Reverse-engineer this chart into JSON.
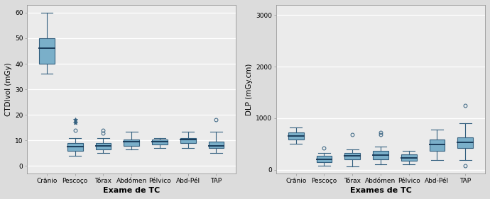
{
  "categories": [
    "Crânio",
    "Pescoço",
    "Tórax",
    "Abdómen",
    "Pélvico",
    "Abd-Pél",
    "TAP"
  ],
  "xlabel1": "Exame de TC",
  "xlabel2": "Exames de TC",
  "ylabel1": "CTDIvol (mGy)",
  "ylabel2": "DLP (mGy.cm)",
  "fig_facecolor": "#dcdcdc",
  "ax_facecolor": "#ebebeb",
  "box_facecolor": "#7aafc9",
  "box_edgecolor": "#34607f",
  "median_color": "#1a3c5a",
  "whisker_color": "#34607f",
  "flier_color": "#34607f",
  "plot1": {
    "ylim": [
      -3,
      63
    ],
    "yticks": [
      0,
      10,
      20,
      30,
      40,
      50,
      60
    ],
    "boxes": [
      {
        "q1": 40,
        "median": 46,
        "q3": 50,
        "whislo": 36,
        "whishi": 60,
        "fliers_star": [],
        "fliers_circ": []
      },
      {
        "q1": 6,
        "median": 7.5,
        "q3": 9,
        "whislo": 4,
        "whishi": 11,
        "fliers_star": [
          18,
          17
        ],
        "fliers_circ": [
          14
        ]
      },
      {
        "q1": 6.5,
        "median": 8,
        "q3": 9,
        "whislo": 5,
        "whishi": 11,
        "fliers_star": [],
        "fliers_circ": [
          13,
          14
        ]
      },
      {
        "q1": 8,
        "median": 9.5,
        "q3": 10.5,
        "whislo": 6.5,
        "whishi": 13.5,
        "fliers_star": [],
        "fliers_circ": []
      },
      {
        "q1": 8.5,
        "median": 9.5,
        "q3": 10.5,
        "whislo": 7,
        "whishi": 11,
        "fliers_star": [],
        "fliers_circ": []
      },
      {
        "q1": 9,
        "median": 10.5,
        "q3": 11,
        "whislo": 7,
        "whishi": 13.5,
        "fliers_star": [],
        "fliers_circ": []
      },
      {
        "q1": 7,
        "median": 8,
        "q3": 9.5,
        "whislo": 5,
        "whishi": 13.5,
        "fliers_star": [],
        "fliers_circ": [
          18
        ]
      }
    ]
  },
  "plot2": {
    "ylim": [
      -80,
      3200
    ],
    "yticks": [
      0,
      1000,
      2000,
      3000
    ],
    "boxes": [
      {
        "q1": 580,
        "median": 660,
        "q3": 720,
        "whislo": 500,
        "whishi": 820,
        "fliers_star": [],
        "fliers_circ": []
      },
      {
        "q1": 140,
        "median": 200,
        "q3": 270,
        "whislo": 80,
        "whishi": 320,
        "fliers_star": [],
        "fliers_circ": [
          420
        ]
      },
      {
        "q1": 200,
        "median": 270,
        "q3": 320,
        "whislo": 60,
        "whishi": 390,
        "fliers_star": [],
        "fliers_circ": [
          680
        ]
      },
      {
        "q1": 200,
        "median": 280,
        "q3": 370,
        "whislo": 100,
        "whishi": 450,
        "fliers_star": [],
        "fliers_circ": [
          680,
          720
        ]
      },
      {
        "q1": 170,
        "median": 230,
        "q3": 290,
        "whislo": 100,
        "whishi": 370,
        "fliers_star": [],
        "fliers_circ": []
      },
      {
        "q1": 370,
        "median": 490,
        "q3": 580,
        "whislo": 180,
        "whishi": 780,
        "fliers_star": [],
        "fliers_circ": []
      },
      {
        "q1": 420,
        "median": 530,
        "q3": 620,
        "whislo": 180,
        "whishi": 900,
        "fliers_star": [],
        "fliers_circ": [
          1250,
          80
        ]
      }
    ]
  }
}
